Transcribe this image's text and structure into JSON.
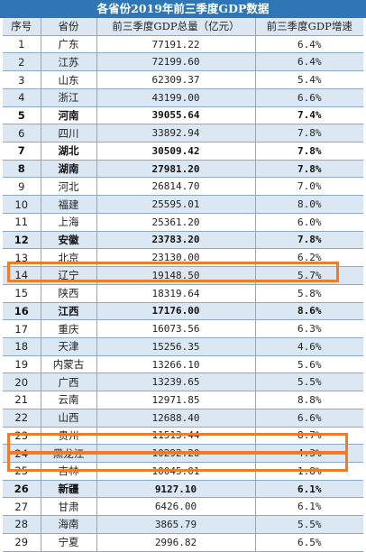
{
  "title": "各省份2019年前三季度GDP数据",
  "headers": [
    "序号",
    "省份",
    "前三季度GDP总量（亿元）",
    "前三季度GDP增速"
  ],
  "rows": [
    {
      "rank": "1",
      "province": "广东",
      "gdp": "77191.22",
      "growth": "6.4%",
      "bold": false
    },
    {
      "rank": "2",
      "province": "江苏",
      "gdp": "72199.60",
      "growth": "6.4%",
      "bold": false
    },
    {
      "rank": "3",
      "province": "山东",
      "gdp": "62309.37",
      "growth": "5.4%",
      "bold": false
    },
    {
      "rank": "4",
      "province": "浙江",
      "gdp": "43199.00",
      "growth": "6.6%",
      "bold": false
    },
    {
      "rank": "5",
      "province": "河南",
      "gdp": "39055.64",
      "growth": "7.4%",
      "bold": true
    },
    {
      "rank": "6",
      "province": "四川",
      "gdp": "33892.94",
      "growth": "7.8%",
      "bold": false
    },
    {
      "rank": "7",
      "province": "湖北",
      "gdp": "30509.42",
      "growth": "7.8%",
      "bold": true
    },
    {
      "rank": "8",
      "province": "湖南",
      "gdp": "27981.20",
      "growth": "7.8%",
      "bold": true
    },
    {
      "rank": "9",
      "province": "河北",
      "gdp": "26814.70",
      "growth": "7.0%",
      "bold": false
    },
    {
      "rank": "10",
      "province": "福建",
      "gdp": "25595.01",
      "growth": "8.0%",
      "bold": false
    },
    {
      "rank": "11",
      "province": "上海",
      "gdp": "25361.20",
      "growth": "6.0%",
      "bold": false
    },
    {
      "rank": "12",
      "province": "安徽",
      "gdp": "23783.20",
      "growth": "7.8%",
      "bold": true
    },
    {
      "rank": "13",
      "province": "北京",
      "gdp": "23130.00",
      "growth": "6.2%",
      "bold": false
    },
    {
      "rank": "14",
      "province": "辽宁",
      "gdp": "19148.50",
      "growth": "5.7%",
      "bold": false
    },
    {
      "rank": "15",
      "province": "陕西",
      "gdp": "18319.64",
      "growth": "5.8%",
      "bold": false
    },
    {
      "rank": "16",
      "province": "江西",
      "gdp": "17176.00",
      "growth": "8.6%",
      "bold": true
    },
    {
      "rank": "17",
      "province": "重庆",
      "gdp": "16073.56",
      "growth": "6.3%",
      "bold": false
    },
    {
      "rank": "18",
      "province": "天津",
      "gdp": "15256.35",
      "growth": "4.6%",
      "bold": false
    },
    {
      "rank": "19",
      "province": "内蒙古",
      "gdp": "13266.10",
      "growth": "5.6%",
      "bold": false
    },
    {
      "rank": "20",
      "province": "广西",
      "gdp": "13239.65",
      "growth": "5.5%",
      "bold": false
    },
    {
      "rank": "21",
      "province": "云南",
      "gdp": "12971.85",
      "growth": "8.8%",
      "bold": false
    },
    {
      "rank": "22",
      "province": "山西",
      "gdp": "12688.40",
      "growth": "6.6%",
      "bold": false
    },
    {
      "rank": "23",
      "province": "贵州",
      "gdp": "11513.44",
      "growth": "8.7%",
      "bold": false
    },
    {
      "rank": "24",
      "province": "黑龙江",
      "gdp": "10292.20",
      "growth": "4.3%",
      "bold": false
    },
    {
      "rank": "25",
      "province": "吉林",
      "gdp": "10045.01",
      "growth": "1.8%",
      "bold": false
    },
    {
      "rank": "26",
      "province": "新疆",
      "gdp": "9127.10",
      "growth": "6.1%",
      "bold": true
    },
    {
      "rank": "27",
      "province": "甘肃",
      "gdp": "6426.00",
      "growth": "6.1%",
      "bold": false
    },
    {
      "rank": "28",
      "province": "海南",
      "gdp": "3865.79",
      "growth": "5.5%",
      "bold": false
    },
    {
      "rank": "29",
      "province": "宁夏",
      "gdp": "2996.82",
      "growth": "6.5%",
      "bold": false
    }
  ],
  "highlighted_ranks": [
    "14",
    "24",
    "25"
  ],
  "colors": {
    "header_band": "#2e76b6",
    "stripe": "#dbe7f3",
    "highlight": "#f07c2a"
  }
}
